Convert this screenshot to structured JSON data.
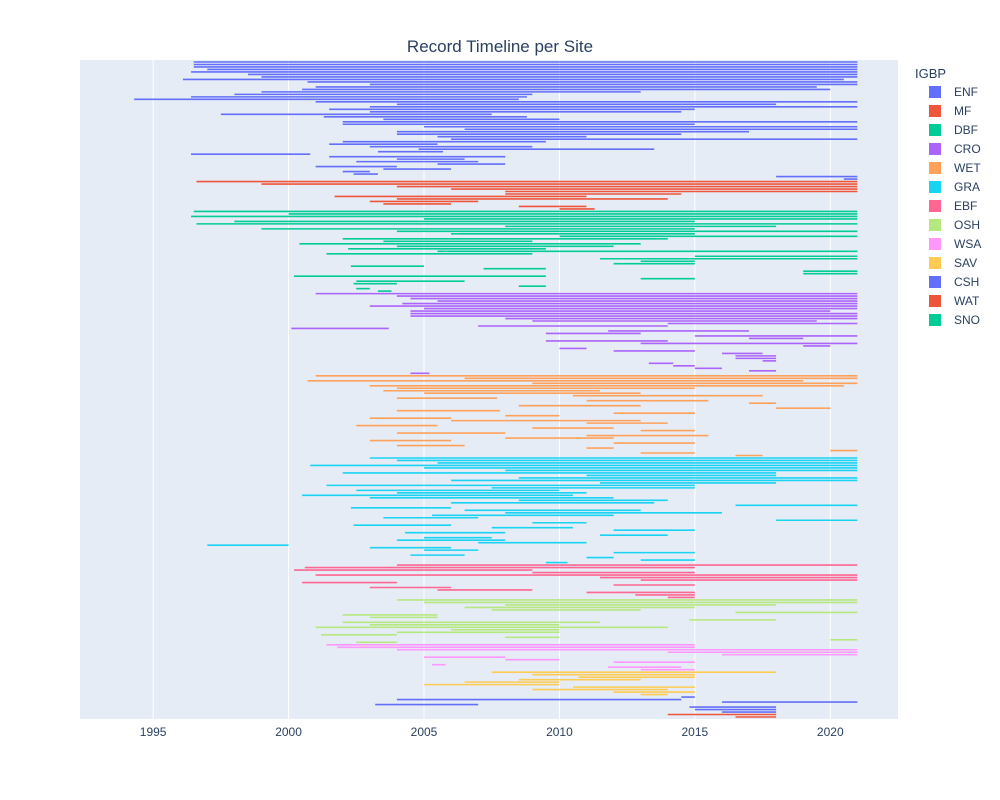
{
  "chart_data": {
    "type": "timeline",
    "title": "Record Timeline per Site",
    "xlabel": "",
    "ylabel": "",
    "xlim": [
      1992.3,
      2022.5
    ],
    "x_ticks": [
      "1995",
      "2000",
      "2005",
      "2010",
      "2015",
      "2020"
    ],
    "x_tick_values": [
      1995,
      2000,
      2005,
      2010,
      2015,
      2020
    ],
    "grid": true,
    "legend": {
      "title": "IGBP",
      "placement": "right"
    },
    "colors": {
      "ENF": "#636efa",
      "MF": "#EF553B",
      "DBF": "#00cc96",
      "CRO": "#ab63fa",
      "WET": "#FFA15A",
      "GRA": "#19d3f3",
      "EBF": "#FF6692",
      "OSH": "#B6E880",
      "WSA": "#FF97FF",
      "SAV": "#FECB52",
      "CSH": "#636efa",
      "WAT": "#EF553B",
      "SNO": "#00cc96"
    },
    "series": [
      {
        "name": "ENF",
        "segments": [
          [
            1996.5,
            2021
          ],
          [
            1996.5,
            2021
          ],
          [
            1996.5,
            2021
          ],
          [
            1997,
            2021
          ],
          [
            1996.4,
            2021
          ],
          [
            1998.5,
            2021
          ],
          [
            1999,
            2021
          ],
          [
            1996.1,
            2020.5
          ],
          [
            2000.7,
            2021
          ],
          [
            2003,
            2021
          ],
          [
            2001,
            2019.5
          ],
          [
            2000.5,
            2020
          ],
          [
            1999,
            2013
          ],
          [
            1998,
            2009
          ],
          [
            1996.4,
            2008.8
          ],
          [
            1994.3,
            2008.5
          ],
          [
            2001,
            2021
          ],
          [
            2004,
            2018
          ],
          [
            2003,
            2021
          ],
          [
            2001.5,
            2015
          ],
          [
            2003,
            2014.5
          ],
          [
            1997.5,
            2007.5
          ],
          [
            2001.3,
            2008.8
          ],
          [
            2003.5,
            2010
          ],
          [
            2002,
            2021
          ],
          [
            2002,
            2015
          ],
          [
            2005,
            2021
          ],
          [
            2006.5,
            2021
          ],
          [
            2004,
            2017
          ],
          [
            2004,
            2014.5
          ],
          [
            2005.5,
            2011
          ],
          [
            2006,
            2021
          ],
          [
            2002,
            2009.5
          ],
          [
            2001.5,
            2005.5
          ],
          [
            2003,
            2009
          ],
          [
            2004.8,
            2013.5
          ],
          [
            2003.3,
            2005.7
          ],
          [
            1996.4,
            2000.8
          ],
          [
            2001.5,
            2008
          ],
          [
            2004,
            2006.5
          ],
          [
            2002.5,
            2007
          ],
          [
            2005.5,
            2008
          ],
          [
            2001,
            2004
          ],
          [
            2003.5,
            2006
          ],
          [
            2002,
            2003
          ],
          [
            2002.4,
            2003.3
          ],
          [
            2018,
            2021
          ],
          [
            2020.5,
            2021
          ]
        ]
      },
      {
        "name": "MF",
        "segments": [
          [
            1996.6,
            2021
          ],
          [
            1999,
            2021
          ],
          [
            2004,
            2021
          ],
          [
            2006,
            2021
          ],
          [
            2008,
            2021
          ],
          [
            2008,
            2014.5
          ],
          [
            2001.7,
            2011
          ],
          [
            2004,
            2014
          ],
          [
            2003,
            2007
          ],
          [
            2003.5,
            2006
          ],
          [
            2008.5,
            2011
          ],
          [
            2010,
            2011.3
          ]
        ]
      },
      {
        "name": "DBF",
        "segments": [
          [
            1996.5,
            2021
          ],
          [
            2000,
            2021
          ],
          [
            1996.4,
            2021
          ],
          [
            2005,
            2021
          ],
          [
            1998,
            2015
          ],
          [
            1996.6,
            2021
          ],
          [
            2008,
            2018
          ],
          [
            1999,
            2015
          ],
          [
            2004,
            2021
          ],
          [
            2006,
            2015
          ],
          [
            2010,
            2021
          ],
          [
            2002,
            2014
          ],
          [
            2003.5,
            2009
          ],
          [
            2000.4,
            2013
          ],
          [
            2004,
            2012
          ],
          [
            2002.2,
            2009.5
          ],
          [
            2005.5,
            2021
          ],
          [
            2001.4,
            2009
          ],
          [
            2015,
            2021
          ],
          [
            2011.5,
            2021
          ],
          [
            2013,
            2015
          ],
          [
            2012,
            2015
          ],
          [
            2002.3,
            2005
          ],
          [
            2007.2,
            2009.5
          ],
          [
            2019,
            2021
          ],
          [
            2019,
            2021
          ],
          [
            2000.2,
            2009.5
          ],
          [
            2013,
            2015
          ],
          [
            2002.5,
            2006.5
          ],
          [
            2002.4,
            2004
          ],
          [
            2008.5,
            2009.5
          ],
          [
            2002.5,
            2003
          ],
          [
            2003.3,
            2003.8
          ]
        ]
      },
      {
        "name": "CRO",
        "segments": [
          [
            2001,
            2021
          ],
          [
            2004,
            2021
          ],
          [
            2004.5,
            2021
          ],
          [
            2005.5,
            2021
          ],
          [
            2004.2,
            2021
          ],
          [
            2003,
            2021
          ],
          [
            2005,
            2021
          ],
          [
            2004.5,
            2020
          ],
          [
            2004.5,
            2021
          ],
          [
            2004.5,
            2021
          ],
          [
            2008,
            2021
          ],
          [
            2009,
            2019.5
          ],
          [
            2014,
            2021
          ],
          [
            2007,
            2014
          ],
          [
            2000.1,
            2003.7
          ],
          [
            2011.8,
            2017
          ],
          [
            2009.5,
            2013
          ],
          [
            2015,
            2021
          ],
          [
            2017,
            2019
          ],
          [
            2009.5,
            2014
          ],
          [
            2013,
            2021
          ],
          [
            2019,
            2020
          ],
          [
            2010,
            2011
          ],
          [
            2012,
            2015
          ],
          [
            2016,
            2017.5
          ],
          [
            2016.5,
            2018
          ],
          [
            2016.5,
            2018
          ],
          [
            2017.5,
            2018
          ],
          [
            2013.3,
            2014.2
          ],
          [
            2014.2,
            2015
          ],
          [
            2015,
            2016
          ],
          [
            2017,
            2018
          ],
          [
            2004.5,
            2005.2
          ]
        ]
      },
      {
        "name": "WET",
        "segments": [
          [
            2001,
            2021
          ],
          [
            2006.5,
            2021
          ],
          [
            2000.7,
            2019
          ],
          [
            2009,
            2021
          ],
          [
            2003,
            2020.5
          ],
          [
            2004,
            2015
          ],
          [
            2003.5,
            2011.5
          ],
          [
            2005,
            2013
          ],
          [
            2010.5,
            2017.5
          ],
          [
            2004,
            2007.7
          ],
          [
            2011,
            2015.5
          ],
          [
            2017,
            2018
          ],
          [
            2008.5,
            2013
          ],
          [
            2018,
            2020
          ],
          [
            2004,
            2007.8
          ],
          [
            2012,
            2015
          ],
          [
            2008,
            2010
          ],
          [
            2003,
            2006
          ],
          [
            2006,
            2013
          ],
          [
            2011,
            2014
          ],
          [
            2002.5,
            2005.5
          ],
          [
            2009,
            2012
          ],
          [
            2013,
            2015
          ],
          [
            2004,
            2008
          ],
          [
            2011,
            2015.5
          ],
          [
            2008,
            2012
          ],
          [
            2003,
            2006
          ],
          [
            2012,
            2015
          ],
          [
            2004,
            2006.5
          ],
          [
            2011,
            2012
          ],
          [
            2020,
            2021
          ],
          [
            2013,
            2015
          ],
          [
            2016.5,
            2017.5
          ]
        ]
      },
      {
        "name": "GRA",
        "segments": [
          [
            2003,
            2021
          ],
          [
            2004,
            2021
          ],
          [
            2005.5,
            2021
          ],
          [
            2000.8,
            2021
          ],
          [
            2005,
            2021
          ],
          [
            2008,
            2021
          ],
          [
            2002,
            2018
          ],
          [
            2011,
            2018
          ],
          [
            2008.5,
            2021
          ],
          [
            2006,
            2021
          ],
          [
            2011.5,
            2018
          ],
          [
            2001.4,
            2015
          ],
          [
            2007.5,
            2015
          ],
          [
            2002.5,
            2010
          ],
          [
            2004,
            2011
          ],
          [
            2000.5,
            2010.5
          ],
          [
            2003,
            2012
          ],
          [
            2008.5,
            2014
          ],
          [
            2006,
            2013.5
          ],
          [
            2016.5,
            2021
          ],
          [
            2002.3,
            2006
          ],
          [
            2006.5,
            2013
          ],
          [
            2008,
            2016
          ],
          [
            2005.3,
            2012
          ],
          [
            2003.5,
            2007
          ],
          [
            2018,
            2021
          ],
          [
            2009,
            2011
          ],
          [
            2002.4,
            2006
          ],
          [
            2007.5,
            2010.5
          ],
          [
            2012,
            2015
          ],
          [
            2004.3,
            2008
          ],
          [
            2011.5,
            2014
          ],
          [
            2005,
            2007.5
          ],
          [
            2004,
            2008
          ],
          [
            2007,
            2011
          ],
          [
            1997,
            2000
          ],
          [
            2003,
            2006
          ],
          [
            2005,
            2007
          ],
          [
            2012,
            2015
          ],
          [
            2004.5,
            2006.5
          ],
          [
            2011,
            2012
          ],
          [
            2013,
            2015
          ],
          [
            2009.5,
            2010.3
          ]
        ]
      },
      {
        "name": "EBF",
        "segments": [
          [
            2004,
            2021
          ],
          [
            2000.6,
            2015
          ],
          [
            2000.2,
            2009
          ],
          [
            2009,
            2015
          ],
          [
            2001,
            2021
          ],
          [
            2011.5,
            2021
          ],
          [
            2013,
            2021
          ],
          [
            2000.5,
            2004
          ],
          [
            2012,
            2015
          ],
          [
            2003,
            2006
          ],
          [
            2005.5,
            2009
          ],
          [
            2011,
            2015
          ],
          [
            2012.8,
            2015
          ],
          [
            2014,
            2015
          ]
        ]
      },
      {
        "name": "OSH",
        "segments": [
          [
            2004,
            2021
          ],
          [
            2005,
            2021
          ],
          [
            2008,
            2018
          ],
          [
            2006.5,
            2015
          ],
          [
            2007.5,
            2013
          ],
          [
            2016.5,
            2021
          ],
          [
            2002,
            2005.5
          ],
          [
            2003,
            2005.5
          ],
          [
            2014.8,
            2018
          ],
          [
            2002,
            2011.5
          ],
          [
            2003,
            2010
          ],
          [
            2001,
            2014
          ],
          [
            2006,
            2010
          ],
          [
            2004,
            2010
          ],
          [
            2001.2,
            2004
          ],
          [
            2008,
            2010
          ],
          [
            2020,
            2021
          ],
          [
            2002.5,
            2004
          ]
        ]
      },
      {
        "name": "WSA",
        "segments": [
          [
            2001.4,
            2015
          ],
          [
            2001.8,
            2015
          ],
          [
            2004,
            2021
          ],
          [
            2014,
            2021
          ],
          [
            2016,
            2021
          ],
          [
            2005,
            2008
          ],
          [
            2008,
            2010
          ],
          [
            2012,
            2015
          ],
          [
            2005.3,
            2005.8
          ],
          [
            2011.8,
            2014.5
          ],
          [
            2013,
            2015
          ]
        ]
      },
      {
        "name": "SAV",
        "segments": [
          [
            2007.5,
            2018
          ],
          [
            2009,
            2015
          ],
          [
            2010.7,
            2015
          ],
          [
            2008.5,
            2013
          ],
          [
            2006.5,
            2010
          ],
          [
            2005,
            2010
          ],
          [
            2010.5,
            2015
          ],
          [
            2009,
            2014
          ],
          [
            2012,
            2015
          ],
          [
            2013,
            2014
          ]
        ]
      },
      {
        "name": "CSH",
        "segments": [
          [
            2014.5,
            2015
          ],
          [
            2004,
            2014.5
          ],
          [
            2016,
            2021
          ],
          [
            2003.2,
            2007
          ],
          [
            2014.8,
            2018
          ],
          [
            2015,
            2018
          ],
          [
            2016,
            2018
          ]
        ]
      },
      {
        "name": "WAT",
        "segments": [
          [
            2014,
            2018
          ],
          [
            2016.5,
            2018
          ]
        ]
      },
      {
        "name": "SNO",
        "segments": []
      }
    ]
  }
}
